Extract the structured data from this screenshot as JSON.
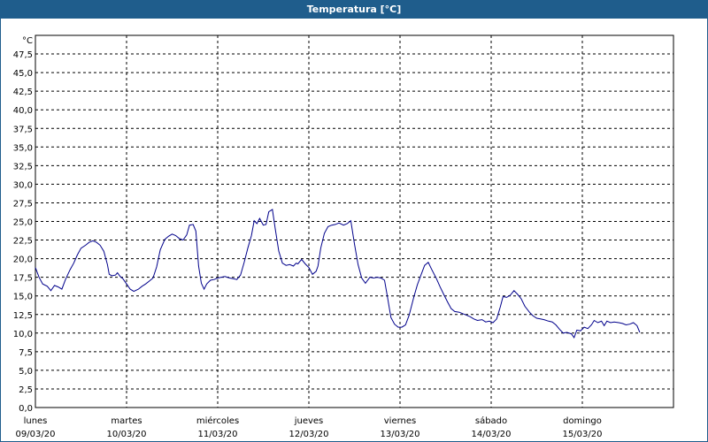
{
  "window": {
    "title": "Temperatura [°C]"
  },
  "colors": {
    "title_bar": "#1f5d8c",
    "line": "#00008b",
    "grid": "#000000"
  },
  "chart_data": {
    "type": "line",
    "title": "Temperatura [°C]",
    "ylabel": "°C",
    "ylim": [
      0,
      50
    ],
    "grid": "dashed",
    "y_ticks": [
      "0,0",
      "2,5",
      "5,0",
      "7,5",
      "10,0",
      "12,5",
      "15,0",
      "17,5",
      "20,0",
      "22,5",
      "25,0",
      "27,5",
      "30,0",
      "32,5",
      "35,0",
      "37,5",
      "40,0",
      "42,5",
      "45,0",
      "47,5"
    ],
    "x_ticks": [
      {
        "day": "lunes",
        "date": "09/03/20"
      },
      {
        "day": "martes",
        "date": "10/03/20"
      },
      {
        "day": "miércoles",
        "date": "11/03/20"
      },
      {
        "day": "jueves",
        "date": "12/03/20"
      },
      {
        "day": "viernes",
        "date": "13/03/20"
      },
      {
        "day": "sábado",
        "date": "14/03/20"
      },
      {
        "day": "domingo",
        "date": "15/03/20"
      }
    ],
    "xlim_days": [
      0,
      7
    ],
    "series": [
      {
        "points": [
          [
            0.0,
            18.8
          ],
          [
            0.04,
            17.5
          ],
          [
            0.08,
            16.6
          ],
          [
            0.13,
            16.3
          ],
          [
            0.17,
            15.7
          ],
          [
            0.21,
            16.4
          ],
          [
            0.25,
            16.2
          ],
          [
            0.29,
            15.9
          ],
          [
            0.33,
            17.2
          ],
          [
            0.38,
            18.5
          ],
          [
            0.42,
            19.4
          ],
          [
            0.46,
            20.5
          ],
          [
            0.5,
            21.4
          ],
          [
            0.55,
            21.8
          ],
          [
            0.59,
            22.2
          ],
          [
            0.63,
            22.4
          ],
          [
            0.67,
            22.2
          ],
          [
            0.71,
            21.8
          ],
          [
            0.75,
            21.0
          ],
          [
            0.79,
            19.2
          ],
          [
            0.81,
            17.9
          ],
          [
            0.84,
            17.7
          ],
          [
            0.88,
            17.8
          ],
          [
            0.9,
            18.1
          ],
          [
            0.93,
            17.6
          ],
          [
            0.96,
            17.3
          ],
          [
            1.0,
            16.6
          ],
          [
            1.04,
            15.9
          ],
          [
            1.08,
            15.6
          ],
          [
            1.13,
            15.9
          ],
          [
            1.17,
            16.3
          ],
          [
            1.21,
            16.6
          ],
          [
            1.25,
            17.0
          ],
          [
            1.29,
            17.4
          ],
          [
            1.33,
            18.9
          ],
          [
            1.37,
            21.2
          ],
          [
            1.42,
            22.6
          ],
          [
            1.46,
            23.0
          ],
          [
            1.5,
            23.3
          ],
          [
            1.54,
            23.1
          ],
          [
            1.58,
            22.7
          ],
          [
            1.62,
            22.5
          ],
          [
            1.66,
            23.2
          ],
          [
            1.69,
            24.5
          ],
          [
            1.73,
            24.6
          ],
          [
            1.76,
            23.7
          ],
          [
            1.79,
            19.0
          ],
          [
            1.82,
            16.7
          ],
          [
            1.85,
            15.9
          ],
          [
            1.88,
            16.6
          ],
          [
            1.92,
            17.1
          ],
          [
            1.96,
            17.2
          ],
          [
            2.0,
            17.4
          ],
          [
            2.04,
            17.5
          ],
          [
            2.08,
            17.6
          ],
          [
            2.13,
            17.4
          ],
          [
            2.17,
            17.3
          ],
          [
            2.21,
            17.2
          ],
          [
            2.25,
            17.8
          ],
          [
            2.29,
            19.5
          ],
          [
            2.33,
            21.4
          ],
          [
            2.37,
            23.1
          ],
          [
            2.4,
            25.1
          ],
          [
            2.43,
            24.7
          ],
          [
            2.46,
            25.4
          ],
          [
            2.5,
            24.5
          ],
          [
            2.53,
            24.6
          ],
          [
            2.56,
            26.3
          ],
          [
            2.6,
            26.6
          ],
          [
            2.63,
            24.1
          ],
          [
            2.67,
            21.0
          ],
          [
            2.71,
            19.4
          ],
          [
            2.75,
            19.1
          ],
          [
            2.79,
            19.2
          ],
          [
            2.83,
            19.0
          ],
          [
            2.86,
            19.4
          ],
          [
            2.88,
            19.3
          ],
          [
            2.92,
            19.9
          ],
          [
            2.96,
            19.3
          ],
          [
            3.0,
            18.8
          ],
          [
            3.04,
            17.9
          ],
          [
            3.08,
            18.3
          ],
          [
            3.1,
            19.0
          ],
          [
            3.13,
            21.4
          ],
          [
            3.17,
            23.4
          ],
          [
            3.21,
            24.3
          ],
          [
            3.25,
            24.5
          ],
          [
            3.29,
            24.6
          ],
          [
            3.33,
            24.8
          ],
          [
            3.38,
            24.5
          ],
          [
            3.42,
            24.7
          ],
          [
            3.46,
            25.1
          ],
          [
            3.5,
            22.0
          ],
          [
            3.54,
            19.2
          ],
          [
            3.58,
            17.4
          ],
          [
            3.62,
            16.7
          ],
          [
            3.67,
            17.5
          ],
          [
            3.71,
            17.4
          ],
          [
            3.75,
            17.5
          ],
          [
            3.79,
            17.4
          ],
          [
            3.83,
            17.1
          ],
          [
            3.86,
            15.0
          ],
          [
            3.9,
            12.1
          ],
          [
            3.94,
            11.2
          ],
          [
            3.98,
            10.8
          ],
          [
            4.02,
            10.8
          ],
          [
            4.06,
            11.1
          ],
          [
            4.1,
            12.4
          ],
          [
            4.15,
            14.8
          ],
          [
            4.19,
            16.5
          ],
          [
            4.23,
            17.8
          ],
          [
            4.27,
            19.1
          ],
          [
            4.31,
            19.5
          ],
          [
            4.35,
            18.5
          ],
          [
            4.4,
            17.3
          ],
          [
            4.44,
            16.2
          ],
          [
            4.48,
            15.2
          ],
          [
            4.52,
            14.2
          ],
          [
            4.56,
            13.3
          ],
          [
            4.6,
            12.9
          ],
          [
            4.65,
            12.8
          ],
          [
            4.69,
            12.6
          ],
          [
            4.73,
            12.4
          ],
          [
            4.77,
            12.2
          ],
          [
            4.81,
            11.9
          ],
          [
            4.85,
            11.7
          ],
          [
            4.9,
            11.8
          ],
          [
            4.94,
            11.5
          ],
          [
            4.98,
            11.6
          ],
          [
            5.02,
            11.4
          ],
          [
            5.06,
            11.9
          ],
          [
            5.1,
            13.5
          ],
          [
            5.13,
            14.9
          ],
          [
            5.17,
            14.8
          ],
          [
            5.21,
            15.1
          ],
          [
            5.25,
            15.7
          ],
          [
            5.29,
            15.2
          ],
          [
            5.33,
            14.6
          ],
          [
            5.37,
            13.6
          ],
          [
            5.42,
            12.8
          ],
          [
            5.46,
            12.3
          ],
          [
            5.5,
            12.0
          ],
          [
            5.54,
            11.9
          ],
          [
            5.58,
            11.8
          ],
          [
            5.63,
            11.6
          ],
          [
            5.67,
            11.5
          ],
          [
            5.71,
            11.1
          ],
          [
            5.75,
            10.5
          ],
          [
            5.79,
            10.0
          ],
          [
            5.83,
            10.1
          ],
          [
            5.88,
            9.9
          ],
          [
            5.91,
            9.4
          ],
          [
            5.94,
            10.4
          ],
          [
            5.98,
            10.3
          ],
          [
            6.02,
            10.8
          ],
          [
            6.06,
            10.6
          ],
          [
            6.1,
            11.1
          ],
          [
            6.13,
            11.7
          ],
          [
            6.17,
            11.4
          ],
          [
            6.21,
            11.6
          ],
          [
            6.24,
            11.0
          ],
          [
            6.27,
            11.6
          ],
          [
            6.31,
            11.4
          ],
          [
            6.35,
            11.5
          ],
          [
            6.4,
            11.4
          ],
          [
            6.44,
            11.3
          ],
          [
            6.48,
            11.1
          ],
          [
            6.52,
            11.2
          ],
          [
            6.56,
            11.4
          ],
          [
            6.6,
            11.0
          ],
          [
            6.63,
            10.1
          ]
        ]
      }
    ]
  }
}
